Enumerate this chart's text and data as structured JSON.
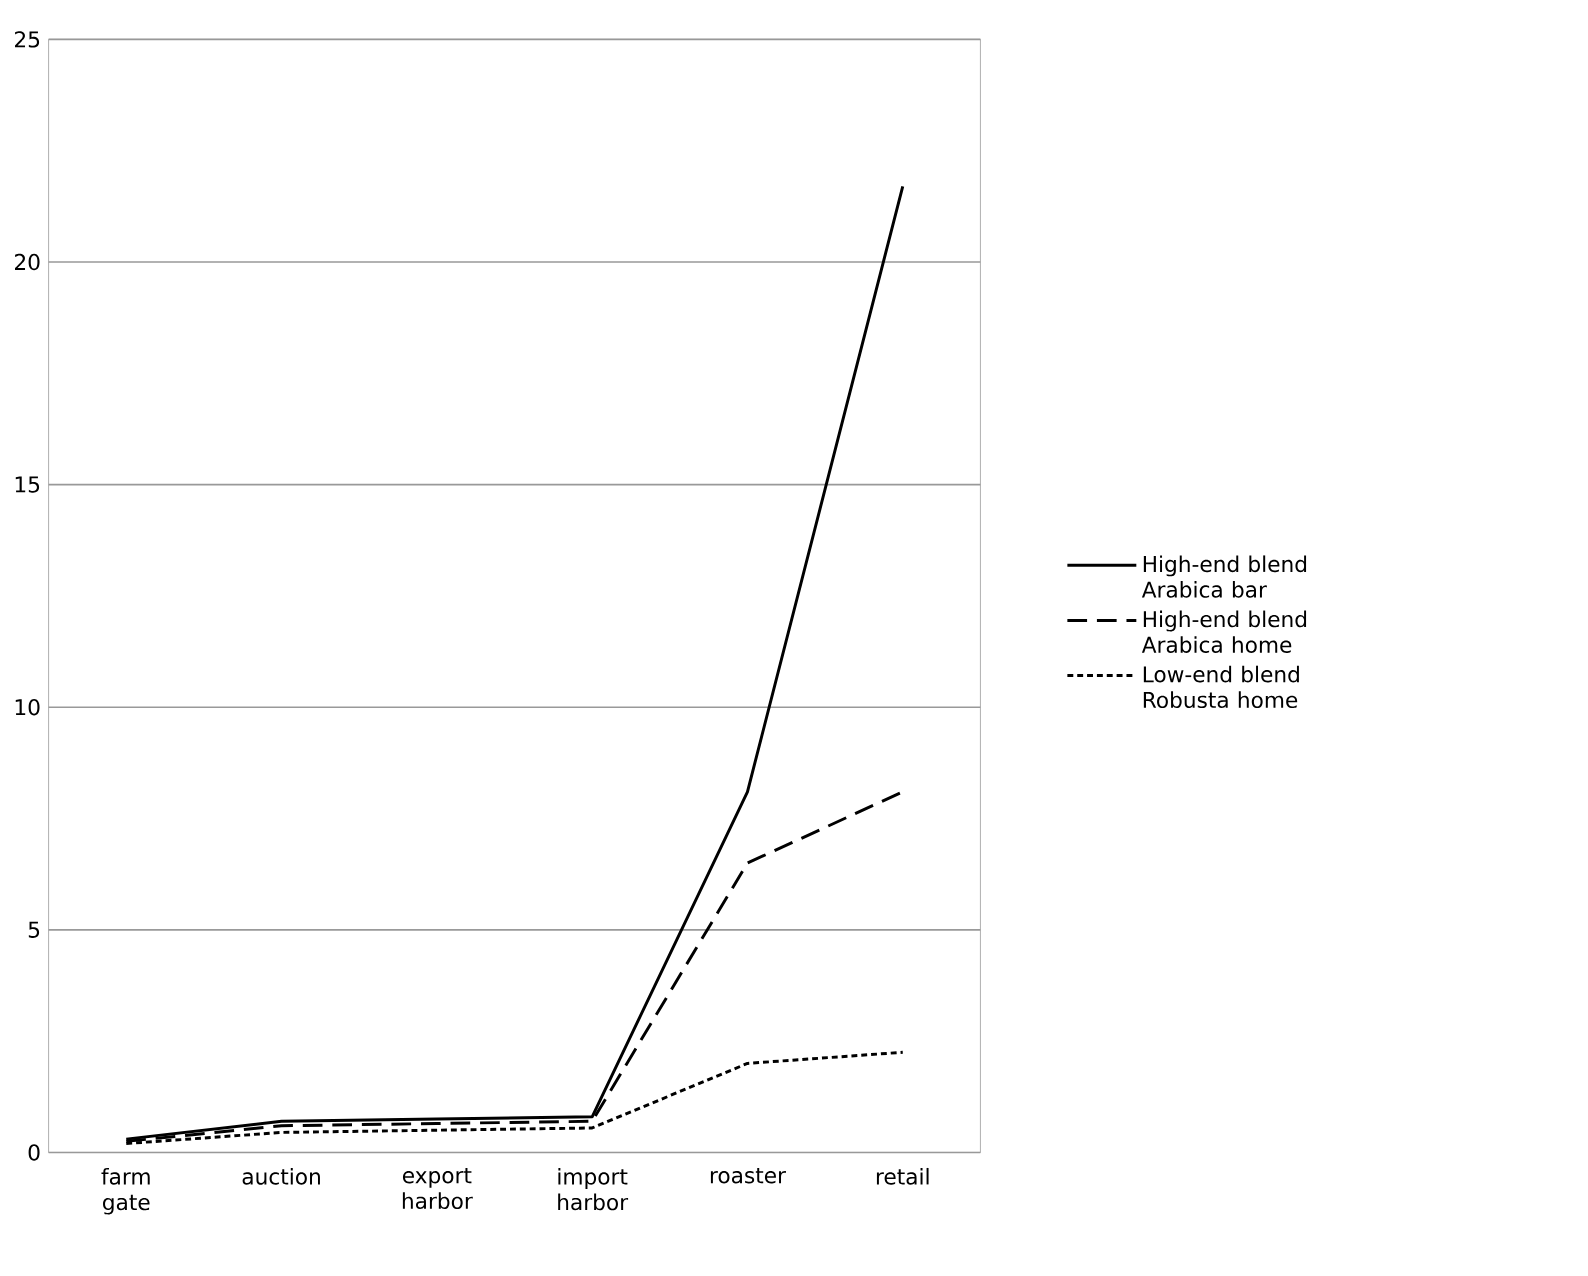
{
  "chart_data": {
    "type": "line",
    "categories": [
      "farm gate",
      "auction",
      "export harbor",
      "import harbor",
      "roaster",
      "retail"
    ],
    "series": [
      {
        "name": "High-end blend Arabica bar",
        "color": "#000000",
        "line_style": "solid",
        "values": [
          0.3,
          0.7,
          0.75,
          0.8,
          8.1,
          21.7
        ]
      },
      {
        "name": "High-end blend Arabica home",
        "color": "#000000",
        "line_style": "dashed",
        "values": [
          0.25,
          0.6,
          0.65,
          0.7,
          6.5,
          8.1
        ]
      },
      {
        "name": "Low-end blend Robusta home",
        "color": "#000000",
        "line_style": "dotted",
        "values": [
          0.2,
          0.45,
          0.5,
          0.55,
          2.0,
          2.25
        ]
      }
    ],
    "ylim": [
      0,
      25
    ],
    "yticks": [
      0,
      5,
      10,
      15,
      20,
      25
    ],
    "grid": "y",
    "legend": "right",
    "marker": "none"
  }
}
